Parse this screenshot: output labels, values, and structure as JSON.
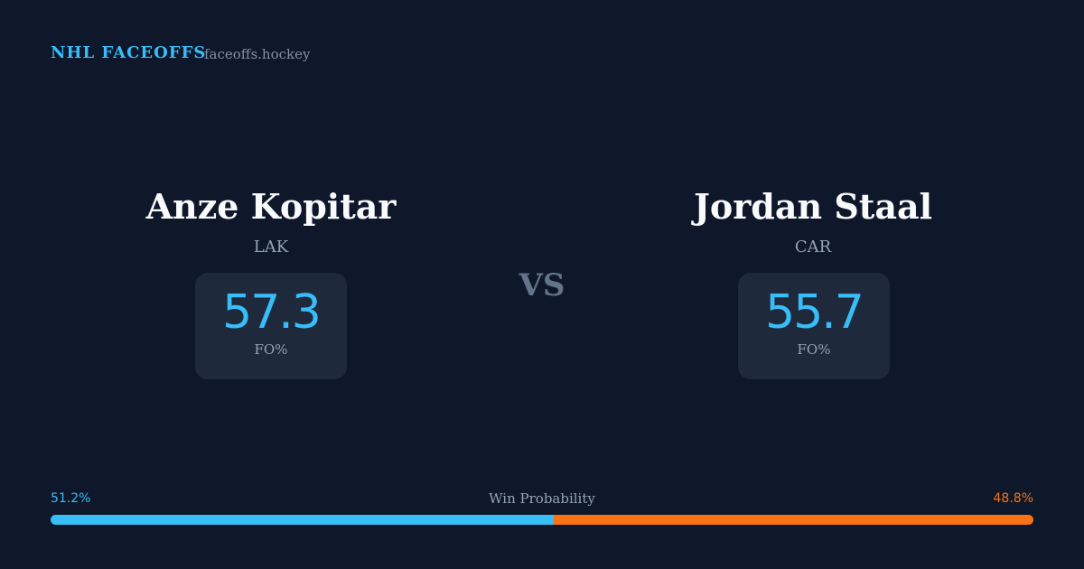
{
  "header": {
    "title": "NHL FACEOFFS",
    "site": "faceoffs.hockey"
  },
  "players": [
    {
      "name": "Anze Kopitar",
      "team": "LAK",
      "fo_pct": 57.3,
      "fo_label": "FO%"
    },
    {
      "name": "Jordan Staal",
      "team": "CAR",
      "fo_pct": 55.7,
      "fo_label": "FO%"
    }
  ],
  "vs": "VS",
  "win_probability": {
    "label": "Win Probability",
    "values": [
      51.2,
      48.8
    ],
    "value_labels": [
      "51.2%",
      "48.8%"
    ],
    "colors": [
      "#38bdf8",
      "#f97316"
    ]
  }
}
